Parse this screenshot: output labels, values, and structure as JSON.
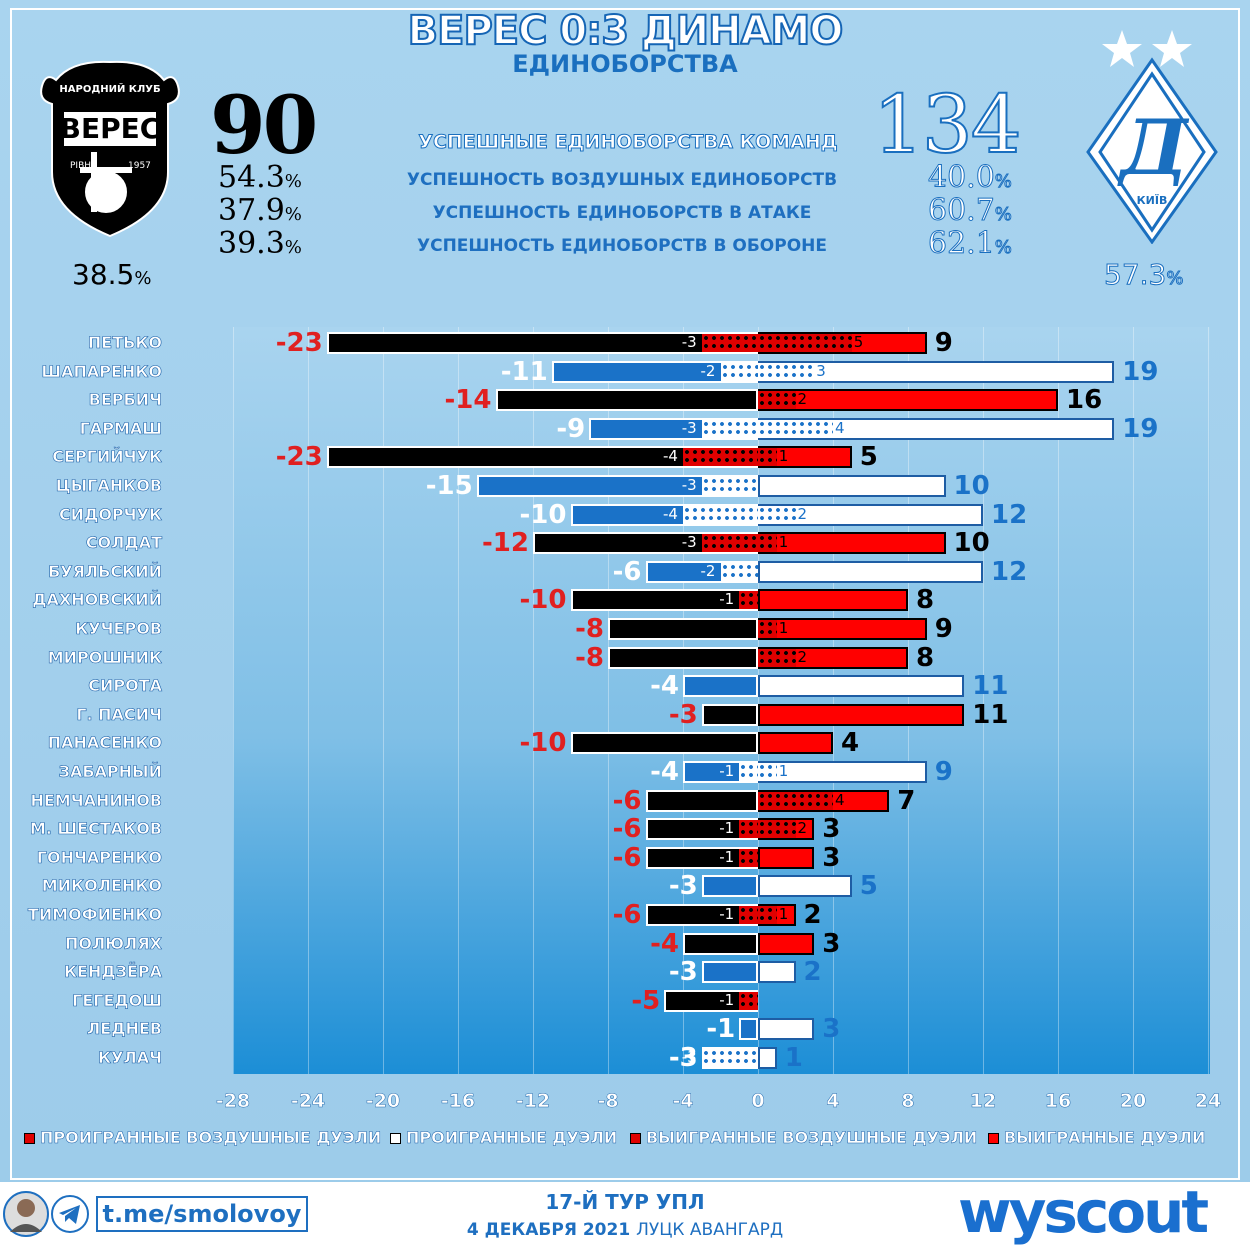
{
  "header": {
    "title": "ВЕРЕС 0:3 ДИНАМО",
    "subtitle": "ЕДИНОБОРСТВА",
    "team_left": {
      "logo_top": "НАРОДНИЙ КЛУБ",
      "logo_name": "ВЕРЕС",
      "logo_city": "РІВНЕ",
      "logo_year": "1957",
      "total": "90",
      "team_pct": "38.5",
      "pct_sign": "%"
    },
    "team_right": {
      "logo_text": "КИЇВ",
      "total": "134",
      "team_pct": "57.3",
      "pct_sign": "%"
    },
    "stats": [
      {
        "label": "УСПЕШНЫЕ ЕДИНОБОРСТВА КОМАНД",
        "left": null,
        "right": null
      },
      {
        "label": "УСПЕШНОСТЬ ВОЗДУШНЫХ ЕДИНОБОРСТВ",
        "left": "54.3",
        "right": "40.0"
      },
      {
        "label": "УСПЕШНОСТЬ ЕДИНОБОРСТВ В АТАКЕ",
        "left": "37.9",
        "right": "60.7"
      },
      {
        "label": "УСПЕШНОСТЬ ЕДИНОБОРСТВ В ОБОРОНЕ",
        "left": "39.3",
        "right": "62.1"
      }
    ]
  },
  "chart_data": {
    "type": "bar",
    "orientation": "horizontal-diverging",
    "xlim": [
      -28,
      24
    ],
    "xticks": [
      -28,
      -24,
      -20,
      -16,
      -12,
      -8,
      -4,
      0,
      4,
      8,
      12,
      16,
      20,
      24
    ],
    "grid": true,
    "legend_position": "bottom",
    "legend": [
      "ПРОИГРАННЫЕ ВОЗДУШНЫЕ ДУЭЛИ",
      "ПРОИГРАННЫЕ ДУЭЛИ",
      "ВЫИГРАННЫЕ ВОЗДУШНЫЕ ДУЭЛИ",
      "ВЫИГРАННЫЕ ДУЭЛИ"
    ],
    "players": [
      {
        "name": "ПЕТЬКО",
        "team": "veres",
        "lost": -23,
        "lost_air": -3,
        "won": 9,
        "won_air": 5
      },
      {
        "name": "ШАПАРЕНКО",
        "team": "dynamo",
        "lost": -11,
        "lost_air": -2,
        "won": 19,
        "won_air": 3
      },
      {
        "name": "ВЕРБИЧ",
        "team": "veres",
        "lost": -14,
        "lost_air": 0,
        "won": 16,
        "won_air": 2
      },
      {
        "name": "ГАРМАШ",
        "team": "dynamo",
        "lost": -9,
        "lost_air": -3,
        "won": 19,
        "won_air": 4
      },
      {
        "name": "СЕРГИЙЧУК",
        "team": "veres",
        "lost": -23,
        "lost_air": -4,
        "won": 5,
        "won_air": 1
      },
      {
        "name": "ЦЫГАНКОВ",
        "team": "dynamo",
        "lost": -15,
        "lost_air": -3,
        "won": 10,
        "won_air": 0
      },
      {
        "name": "СИДОРЧУК",
        "team": "dynamo",
        "lost": -10,
        "lost_air": -4,
        "won": 12,
        "won_air": 2
      },
      {
        "name": "СОЛДАТ",
        "team": "veres",
        "lost": -12,
        "lost_air": -3,
        "won": 10,
        "won_air": 1
      },
      {
        "name": "БУЯЛЬСКИЙ",
        "team": "dynamo",
        "lost": -6,
        "lost_air": -2,
        "won": 12,
        "won_air": 0
      },
      {
        "name": "ДАХНОВСКИЙ",
        "team": "veres",
        "lost": -10,
        "lost_air": -1,
        "won": 8,
        "won_air": 0
      },
      {
        "name": "КУЧЕРОВ",
        "team": "veres",
        "lost": -8,
        "lost_air": 0,
        "won": 9,
        "won_air": 1
      },
      {
        "name": "МИРОШНИК",
        "team": "veres",
        "lost": -8,
        "lost_air": 0,
        "won": 8,
        "won_air": 2
      },
      {
        "name": "СИРОТА",
        "team": "dynamo",
        "lost": -4,
        "lost_air": 0,
        "won": 11,
        "won_air": 0
      },
      {
        "name": "Г. ПАСИЧ",
        "team": "veres",
        "lost": -3,
        "lost_air": 0,
        "won": 11,
        "won_air": 0
      },
      {
        "name": "ПАНАСЕНКО",
        "team": "veres",
        "lost": -10,
        "lost_air": 0,
        "won": 4,
        "won_air": 0
      },
      {
        "name": "ЗАБАРНЫЙ",
        "team": "dynamo",
        "lost": -4,
        "lost_air": -1,
        "won": 9,
        "won_air": 1
      },
      {
        "name": "НЕМЧАНИНОВ",
        "team": "veres",
        "lost": -6,
        "lost_air": 0,
        "won": 7,
        "won_air": 4
      },
      {
        "name": "М. ШЕСТАКОВ",
        "team": "veres",
        "lost": -6,
        "lost_air": -1,
        "won": 3,
        "won_air": 2
      },
      {
        "name": "ГОНЧАРЕНКО",
        "team": "veres",
        "lost": -6,
        "lost_air": -1,
        "won": 3,
        "won_air": 0
      },
      {
        "name": "МИКОЛЕНКО",
        "team": "dynamo",
        "lost": -3,
        "lost_air": 0,
        "won": 5,
        "won_air": 0
      },
      {
        "name": "ТИМОФИЕНКО",
        "team": "veres",
        "lost": -6,
        "lost_air": -1,
        "won": 2,
        "won_air": 1
      },
      {
        "name": "ПОЛЮЛЯХ",
        "team": "veres",
        "lost": -4,
        "lost_air": 0,
        "won": 3,
        "won_air": 0
      },
      {
        "name": "КЕНДЗЁРА",
        "team": "dynamo",
        "lost": -3,
        "lost_air": 0,
        "won": 2,
        "won_air": 0
      },
      {
        "name": "ГЕГЕДОШ",
        "team": "veres",
        "lost": -5,
        "lost_air": -1,
        "won": 0,
        "won_air": 0
      },
      {
        "name": "ЛЕДНЕВ",
        "team": "dynamo",
        "lost": -1,
        "lost_air": 0,
        "won": 3,
        "won_air": 0
      },
      {
        "name": "КУЛАЧ",
        "team": "dynamo",
        "lost": -3,
        "lost_air": -3,
        "won": 1,
        "won_air": 0
      }
    ]
  },
  "colors": {
    "veres_bar": "#000000",
    "dynamo_bar": "#1a72c8",
    "won_red": "#ff0000",
    "won_white": "#ffffff",
    "veres_label_lost": "#e02020",
    "dynamo_label_lost": "#ffffff",
    "veres_label_won": "#000000",
    "dynamo_label_won": "#1a72c8"
  },
  "footer": {
    "handle": "t.me/smolovoy",
    "round": "17-Й ТУР УПЛ",
    "date_prefix": "4 ДЕКАБРЯ 2021",
    "venue": "ЛУЦК АВАНГАРД",
    "brand": "wyscout"
  }
}
